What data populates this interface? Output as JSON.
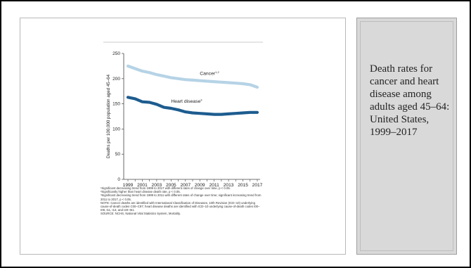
{
  "caption": "Death rates for cancer and heart disease among adults aged 45–64: United States, 1999–2017",
  "chart_data": {
    "type": "line",
    "ylabel": "Deaths per 100,000 population aged 45–64",
    "xlabel": "",
    "ylim": [
      0,
      250
    ],
    "yticks": [
      0,
      50,
      100,
      150,
      200,
      250
    ],
    "x": [
      1999,
      2000,
      2001,
      2002,
      2003,
      2004,
      2005,
      2006,
      2007,
      2008,
      2009,
      2010,
      2011,
      2012,
      2013,
      2014,
      2015,
      2016,
      2017
    ],
    "xtick_labels": [
      "1999",
      "2001",
      "2003",
      "2005",
      "2007",
      "2009",
      "2011",
      "2013",
      "2015",
      "2017"
    ],
    "series": [
      {
        "name": "Cancer",
        "superscript": "1,2",
        "color": "#b6d3e6",
        "values": [
          225,
          220,
          215,
          212,
          208,
          205,
          202,
          200,
          198,
          197,
          196,
          195,
          194,
          193,
          192,
          191,
          190,
          188,
          183
        ]
      },
      {
        "name": "Heart disease",
        "superscript": "3",
        "color": "#1d5c8f",
        "values": [
          163,
          160,
          154,
          153,
          149,
          143,
          141,
          138,
          134,
          132,
          131,
          130,
          129,
          129,
          130,
          131,
          132,
          133,
          133
        ]
      }
    ],
    "grid": false,
    "notes": [
      "¹Significant decreasing trend from 1999 to 2017 with different rates of change over time, p < 0.05.",
      "²Significantly higher than heart disease death rate, p < 0.05.",
      "³Significant decreasing trend from 1999 to 2011 with different rates of change over time; significant increasing trend from 2011 to 2017, p < 0.05.",
      "NOTE: Cancer deaths are identified with International Classification of Diseases, 10th Revision (ICD–10) underlying cause-of-death codes C00–C97; heart disease deaths are identified with ICD–10 underlying cause-of-death codes I00–I09, I11, I13, and I20–I51.",
      "SOURCE: NCHS, National Vital Statistics System, Mortality."
    ]
  }
}
